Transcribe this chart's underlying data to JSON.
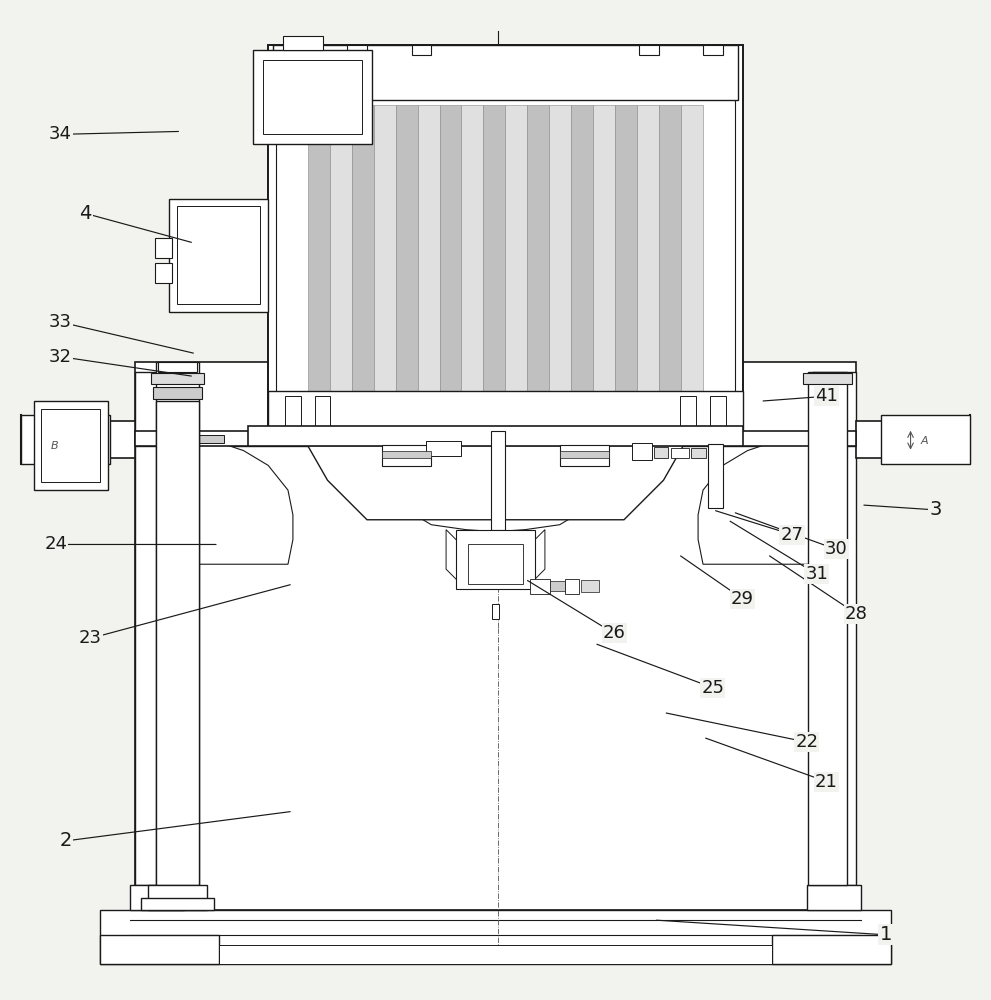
{
  "bg_color": "#f2f2ee",
  "lc": "#1a1a1a",
  "lw": 1.0,
  "figsize": [
    9.91,
    10.0
  ],
  "dpi": 100,
  "labels": {
    "1": {
      "lpos": [
        0.895,
        0.06
      ],
      "tpos": [
        0.66,
        0.075
      ]
    },
    "2": {
      "lpos": [
        0.065,
        0.155
      ],
      "tpos": [
        0.295,
        0.185
      ]
    },
    "3": {
      "lpos": [
        0.945,
        0.49
      ],
      "tpos": [
        0.87,
        0.495
      ]
    },
    "4": {
      "lpos": [
        0.085,
        0.79
      ],
      "tpos": [
        0.195,
        0.76
      ]
    },
    "21": {
      "lpos": [
        0.835,
        0.215
      ],
      "tpos": [
        0.71,
        0.26
      ]
    },
    "22": {
      "lpos": [
        0.815,
        0.255
      ],
      "tpos": [
        0.67,
        0.285
      ]
    },
    "23": {
      "lpos": [
        0.09,
        0.36
      ],
      "tpos": [
        0.295,
        0.415
      ]
    },
    "24": {
      "lpos": [
        0.055,
        0.455
      ],
      "tpos": [
        0.22,
        0.455
      ]
    },
    "25": {
      "lpos": [
        0.72,
        0.31
      ],
      "tpos": [
        0.6,
        0.355
      ]
    },
    "26": {
      "lpos": [
        0.62,
        0.365
      ],
      "tpos": [
        0.53,
        0.42
      ]
    },
    "27": {
      "lpos": [
        0.8,
        0.465
      ],
      "tpos": [
        0.72,
        0.49
      ]
    },
    "28": {
      "lpos": [
        0.865,
        0.385
      ],
      "tpos": [
        0.775,
        0.445
      ]
    },
    "29": {
      "lpos": [
        0.75,
        0.4
      ],
      "tpos": [
        0.685,
        0.445
      ]
    },
    "30": {
      "lpos": [
        0.845,
        0.45
      ],
      "tpos": [
        0.74,
        0.488
      ]
    },
    "31": {
      "lpos": [
        0.825,
        0.425
      ],
      "tpos": [
        0.735,
        0.48
      ]
    },
    "32": {
      "lpos": [
        0.06,
        0.645
      ],
      "tpos": [
        0.195,
        0.625
      ]
    },
    "33": {
      "lpos": [
        0.06,
        0.68
      ],
      "tpos": [
        0.197,
        0.648
      ]
    },
    "34": {
      "lpos": [
        0.06,
        0.87
      ],
      "tpos": [
        0.182,
        0.873
      ]
    },
    "41": {
      "lpos": [
        0.835,
        0.605
      ],
      "tpos": [
        0.768,
        0.6
      ]
    }
  }
}
